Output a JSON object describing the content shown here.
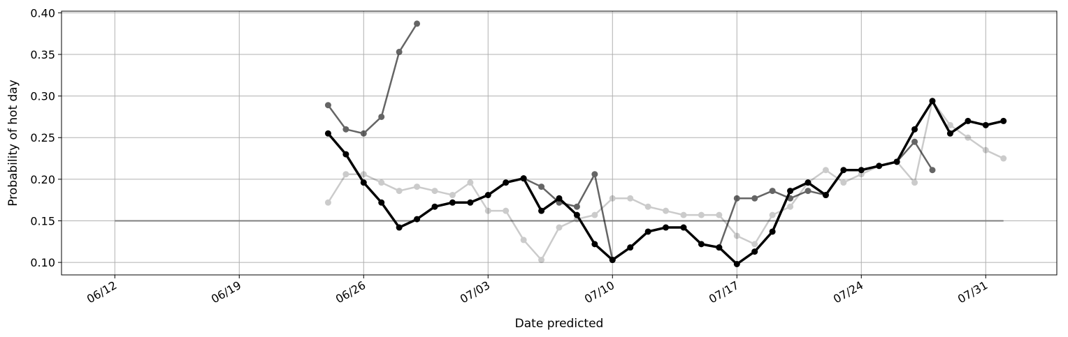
{
  "chart_data": {
    "type": "line",
    "title": "",
    "xlabel": "Date predicted",
    "ylabel": "Probability of hot day",
    "grid": true,
    "xlim": [
      "06/09",
      "08/04"
    ],
    "ylim": [
      0.085,
      0.402
    ],
    "x_ticks": [
      "06/12",
      "06/19",
      "06/26",
      "07/03",
      "07/10",
      "07/17",
      "07/24",
      "07/31"
    ],
    "y_ticks": [
      "0.10",
      "0.15",
      "0.20",
      "0.25",
      "0.30",
      "0.35",
      "0.40"
    ],
    "x": [
      "06/24",
      "06/25",
      "06/26",
      "06/27",
      "06/28",
      "06/29",
      "06/30",
      "07/01",
      "07/02",
      "07/03",
      "07/04",
      "07/05",
      "07/06",
      "07/07",
      "07/08",
      "07/09",
      "07/10",
      "07/11",
      "07/12",
      "07/13",
      "07/14",
      "07/15",
      "07/16",
      "07/17",
      "07/18",
      "07/19",
      "07/20",
      "07/21",
      "07/22",
      "07/23",
      "07/24",
      "07/25",
      "07/26",
      "07/27",
      "07/28",
      "07/29",
      "07/30",
      "07/31",
      "08/01"
    ],
    "reference_line": {
      "y": 0.15,
      "x_from": "06/12",
      "x_to": "08/01",
      "color": "#7f7f7f"
    },
    "series": [
      {
        "color": "#000000",
        "opacity": 0.2,
        "values": [
          0.172,
          0.206,
          0.206,
          0.196,
          0.186,
          0.191,
          0.186,
          0.181,
          0.196,
          0.162,
          0.162,
          0.127,
          0.103,
          0.142,
          0.152,
          0.157,
          0.177,
          0.177,
          0.167,
          0.162,
          0.157,
          0.157,
          0.157,
          0.132,
          0.122,
          0.157,
          0.167,
          0.196,
          0.211,
          0.196,
          0.206,
          0.216,
          0.221,
          0.196,
          0.294,
          0.265,
          0.25,
          0.235,
          0.225
        ]
      },
      {
        "color": "#000000",
        "opacity": 0.6,
        "values": [
          0.289,
          0.26,
          0.255,
          0.275,
          0.353,
          0.387,
          null,
          null,
          null,
          null,
          null,
          0.201,
          0.191,
          0.172,
          0.167,
          0.206,
          0.103,
          null,
          null,
          null,
          null,
          null,
          0.118,
          0.177,
          0.177,
          0.186,
          0.177,
          0.186,
          0.181,
          null,
          null,
          null,
          0.221,
          0.245,
          0.211,
          null,
          null,
          null,
          null
        ]
      },
      {
        "color": "#000000",
        "opacity": 1.0,
        "values": [
          0.255,
          0.23,
          0.196,
          0.172,
          0.142,
          0.152,
          0.167,
          0.172,
          0.172,
          0.181,
          0.196,
          0.201,
          0.162,
          0.177,
          0.157,
          0.122,
          0.103,
          0.118,
          0.137,
          0.142,
          0.142,
          0.122,
          0.118,
          0.098,
          0.113,
          0.137,
          0.186,
          0.196,
          0.181,
          0.211,
          0.211,
          0.216,
          0.221,
          0.26,
          0.294,
          0.255,
          0.27,
          0.265,
          0.27
        ]
      }
    ]
  }
}
